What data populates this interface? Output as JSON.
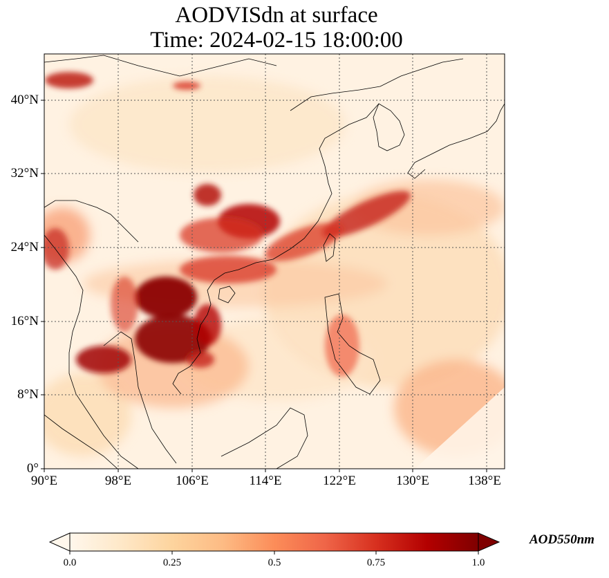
{
  "title": {
    "line1": "AODVISdn at surface",
    "line2": "Time: 2024-02-15 18:00:00"
  },
  "map": {
    "lon_range": [
      90,
      140
    ],
    "lat_range": [
      0,
      45
    ],
    "lat_ticks": [
      "0°",
      "8°N",
      "16°N",
      "24°N",
      "32°N",
      "40°N"
    ],
    "lon_ticks": [
      "90°E",
      "98°E",
      "106°E",
      "114°E",
      "122°E",
      "130°E",
      "138°E"
    ],
    "gridlines": true,
    "colormap": "OrRd",
    "features": [
      "coastlines",
      "country borders"
    ]
  },
  "colorbar": {
    "label": "AOD550nm",
    "ticks": [
      "0.0",
      "0.25",
      "0.5",
      "0.75",
      "1.0"
    ],
    "range": [
      0.0,
      1.0
    ],
    "colors": [
      "#fff7ec",
      "#fee8c8",
      "#fdd49e",
      "#fdbb84",
      "#fc8d59",
      "#ef6548",
      "#d7301f",
      "#b30000",
      "#7f0000"
    ],
    "extend": "both"
  }
}
